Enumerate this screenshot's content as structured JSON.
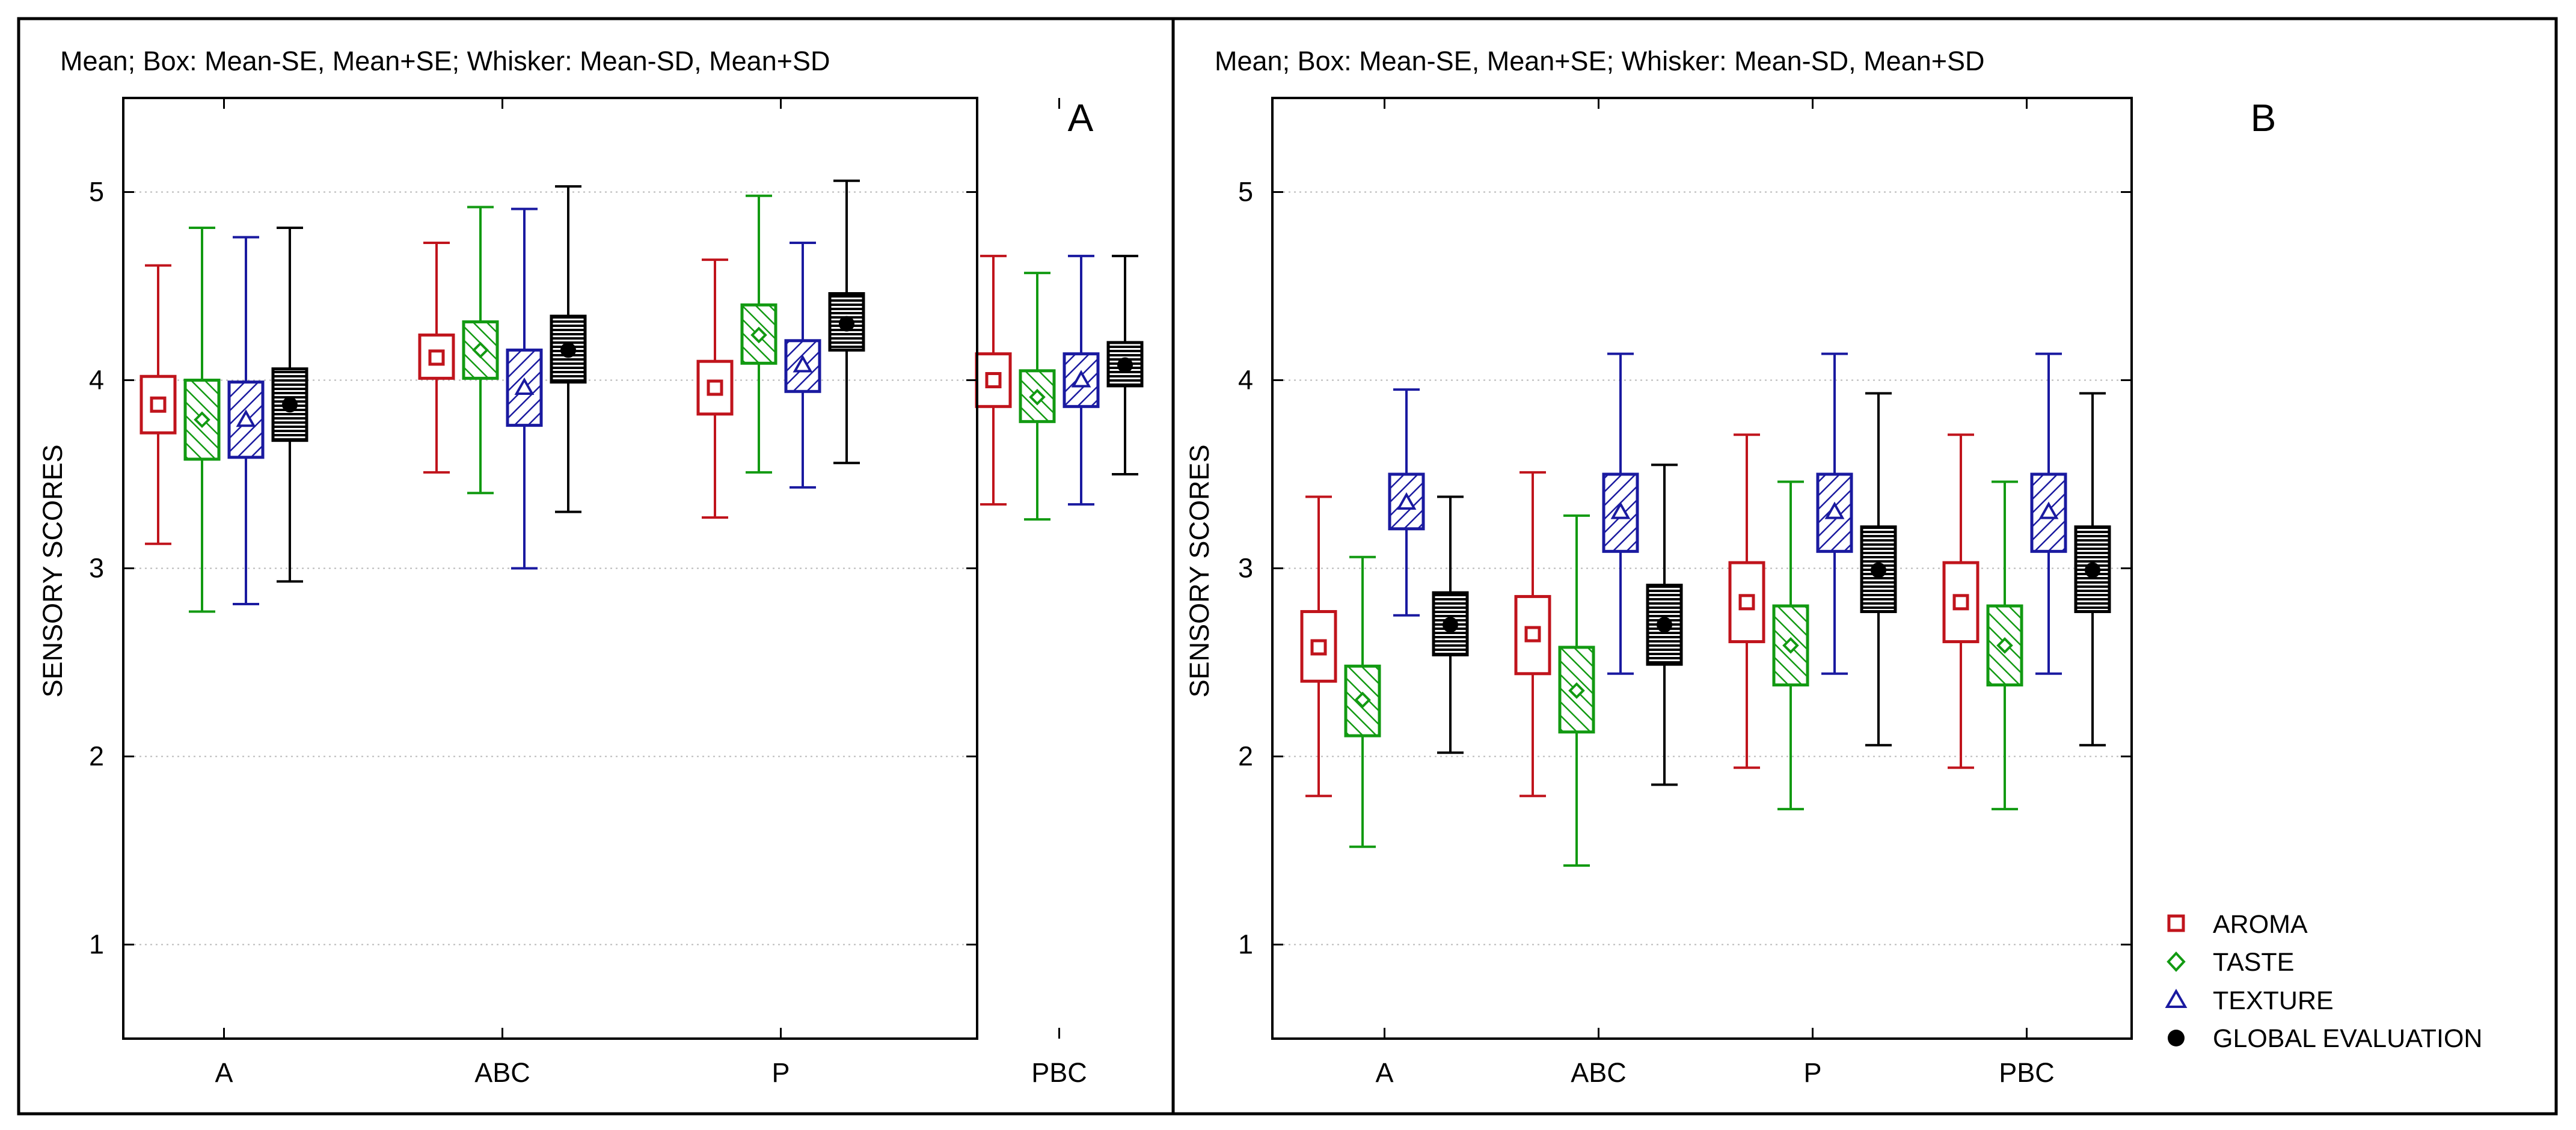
{
  "colors": {
    "aroma": "#c0141c",
    "taste": "#129a12",
    "texture": "#1a1aa0",
    "global": "#000000",
    "grid": "#b8b8b8",
    "frame": "#000000"
  },
  "legend": {
    "items": [
      {
        "key": "aroma",
        "label": "AROMA",
        "marker": "square-icon"
      },
      {
        "key": "taste",
        "label": "TASTE",
        "marker": "diamond-icon"
      },
      {
        "key": "texture",
        "label": "TEXTURE",
        "marker": "triangle-icon"
      },
      {
        "key": "global",
        "label": "GLOBAL EVALUATION",
        "marker": "filled-circle-icon"
      }
    ]
  },
  "chart_data": [
    {
      "type": "boxplot",
      "panel_label": "A",
      "title": "Mean;  Box: Mean-SE, Mean+SE;  Whisker: Mean-SD, Mean+SD",
      "xlabel": "",
      "ylabel": "SENSORY SCORES",
      "ylim": [
        0.5,
        5.5
      ],
      "yticks": [
        1,
        2,
        3,
        4,
        5
      ],
      "grid": true,
      "categories": [
        "A",
        "ABC",
        "P",
        "PBC"
      ],
      "series": [
        {
          "key": "aroma",
          "name": "AROMA",
          "mean": [
            3.87,
            4.12,
            3.96,
            4.0
          ],
          "box_low": [
            3.72,
            4.01,
            3.82,
            3.86
          ],
          "box_high": [
            4.02,
            4.24,
            4.1,
            4.14
          ],
          "whisker_low": [
            3.13,
            3.51,
            3.27,
            3.34
          ],
          "whisker_high": [
            4.61,
            4.73,
            4.64,
            4.66
          ]
        },
        {
          "key": "taste",
          "name": "TASTE",
          "mean": [
            3.79,
            4.16,
            4.24,
            3.91
          ],
          "box_low": [
            3.58,
            4.01,
            4.09,
            3.78
          ],
          "box_high": [
            4.0,
            4.31,
            4.4,
            4.05
          ],
          "whisker_low": [
            2.77,
            3.4,
            3.51,
            3.26
          ],
          "whisker_high": [
            4.81,
            4.92,
            4.98,
            4.57
          ]
        },
        {
          "key": "texture",
          "name": "TEXTURE",
          "mean": [
            3.79,
            3.96,
            4.08,
            4.0
          ],
          "box_low": [
            3.59,
            3.76,
            3.94,
            3.86
          ],
          "box_high": [
            3.99,
            4.16,
            4.21,
            4.14
          ],
          "whisker_low": [
            2.81,
            3.0,
            3.43,
            3.34
          ],
          "whisker_high": [
            4.76,
            4.91,
            4.73,
            4.66
          ]
        },
        {
          "key": "global",
          "name": "GLOBAL EVALUATION",
          "mean": [
            3.87,
            4.16,
            4.3,
            4.08
          ],
          "box_low": [
            3.68,
            3.99,
            4.16,
            3.97
          ],
          "box_high": [
            4.06,
            4.34,
            4.46,
            4.2
          ],
          "whisker_low": [
            2.93,
            3.3,
            3.56,
            3.5
          ],
          "whisker_high": [
            4.81,
            5.03,
            5.06,
            4.66
          ]
        }
      ]
    },
    {
      "type": "boxplot",
      "panel_label": "B",
      "title": "Mean;  Box: Mean-SE, Mean+SE;  Whisker: Mean-SD, Mean+SD",
      "xlabel": "",
      "ylabel": "SENSORY SCORES",
      "ylim": [
        0.5,
        5.5
      ],
      "yticks": [
        1,
        2,
        3,
        4,
        5
      ],
      "grid": true,
      "categories": [
        "A",
        "ABC",
        "P",
        "PBC"
      ],
      "series": [
        {
          "key": "aroma",
          "name": "AROMA",
          "mean": [
            2.58,
            2.65,
            2.82,
            2.82
          ],
          "box_low": [
            2.4,
            2.44,
            2.61,
            2.61
          ],
          "box_high": [
            2.77,
            2.85,
            3.03,
            3.03
          ],
          "whisker_low": [
            1.79,
            1.79,
            1.94,
            1.94
          ],
          "whisker_high": [
            3.38,
            3.51,
            3.71,
            3.71
          ]
        },
        {
          "key": "taste",
          "name": "TASTE",
          "mean": [
            2.3,
            2.35,
            2.59,
            2.59
          ],
          "box_low": [
            2.11,
            2.13,
            2.38,
            2.38
          ],
          "box_high": [
            2.48,
            2.58,
            2.8,
            2.8
          ],
          "whisker_low": [
            1.52,
            1.42,
            1.72,
            1.72
          ],
          "whisker_high": [
            3.06,
            3.28,
            3.46,
            3.46
          ]
        },
        {
          "key": "texture",
          "name": "TEXTURE",
          "mean": [
            3.35,
            3.3,
            3.3,
            3.3
          ],
          "box_low": [
            3.21,
            3.09,
            3.09,
            3.09
          ],
          "box_high": [
            3.5,
            3.5,
            3.5,
            3.5
          ],
          "whisker_low": [
            2.75,
            2.44,
            2.44,
            2.44
          ],
          "whisker_high": [
            3.95,
            4.14,
            4.14,
            4.14
          ]
        },
        {
          "key": "global",
          "name": "GLOBAL EVALUATION",
          "mean": [
            2.7,
            2.7,
            2.99,
            2.99
          ],
          "box_low": [
            2.54,
            2.49,
            2.77,
            2.77
          ],
          "box_high": [
            2.87,
            2.91,
            3.22,
            3.22
          ],
          "whisker_low": [
            2.02,
            1.85,
            2.06,
            2.06
          ],
          "whisker_high": [
            3.38,
            3.55,
            3.93,
            3.93
          ]
        }
      ]
    }
  ]
}
